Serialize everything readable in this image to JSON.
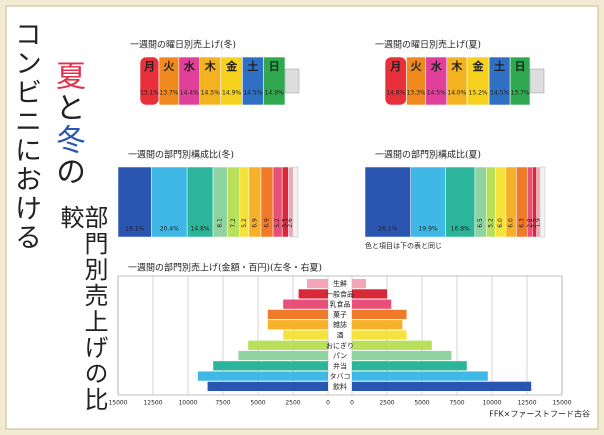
{
  "title": {
    "line1": "コンビニにおける",
    "summer": "夏",
    "and": "と",
    "winter": "冬",
    "no": "の",
    "line3": "部門別売上げの比較"
  },
  "chart_data": [
    {
      "type": "bottle",
      "title": "一週間の曜日別売上げ(冬)",
      "categories": [
        "月",
        "火",
        "水",
        "木",
        "金",
        "土",
        "日"
      ],
      "values": [
        13.1,
        13.7,
        14.4,
        14.5,
        14.9,
        14.5,
        14.9
      ],
      "value_labels": [
        "13.1%",
        "13.7%",
        "14.4%",
        "14.5%",
        "14.9%",
        "14.5%",
        "14.9%"
      ],
      "colors": [
        "#e8303a",
        "#f08a1e",
        "#e0409a",
        "#f3b21f",
        "#f6d21e",
        "#2f6fc4",
        "#2fa84f"
      ]
    },
    {
      "type": "bottle",
      "title": "一週間の曜日別売上げ(夏)",
      "categories": [
        "月",
        "火",
        "水",
        "木",
        "金",
        "土",
        "日"
      ],
      "values": [
        14.8,
        13.3,
        14.5,
        14.0,
        15.2,
        14.5,
        13.7
      ],
      "value_labels": [
        "14.8%",
        "13.3%",
        "14.5%",
        "14.0%",
        "15.2%",
        "14.5%",
        "13.7%"
      ],
      "colors": [
        "#e8303a",
        "#f08a1e",
        "#e0409a",
        "#f3b21f",
        "#f6d21e",
        "#2f6fc4",
        "#2fa84f"
      ]
    },
    {
      "type": "stacked",
      "title": "一週間の部門別構成比(冬)",
      "values": [
        19.1,
        20.4,
        14.8,
        8.1,
        7.2,
        5.2,
        6.9,
        6.9,
        5.2,
        3.5,
        2.6
      ],
      "value_labels": [
        "19.1%",
        "20.4%",
        "14.8%",
        "8.1",
        "7.2",
        "5.2",
        "6.9",
        "6.9",
        "5.2",
        "3.5",
        "2.6"
      ],
      "colors": [
        "#2a55b0",
        "#3fb8e6",
        "#2bb59a",
        "#8fd4a0",
        "#b8e05a",
        "#f5e23a",
        "#f7b02a",
        "#f07a2a",
        "#e8507a",
        "#d8283a",
        "#f4a6b8"
      ]
    },
    {
      "type": "stacked",
      "title": "一週間の部門別構成比(夏)",
      "values": [
        26.1,
        19.9,
        16.8,
        6.5,
        5.2,
        6.0,
        6.0,
        6.3,
        2.8,
        2.5,
        1.9
      ],
      "value_labels": [
        "26.1%",
        "19.9%",
        "16.8%",
        "6.5",
        "5.2",
        "6.0",
        "6.0",
        "6.3",
        "2.8",
        "2.5",
        "1.9"
      ],
      "colors": [
        "#2a55b0",
        "#3fb8e6",
        "#2bb59a",
        "#8fd4a0",
        "#b8e05a",
        "#f5e23a",
        "#f7b02a",
        "#f07a2a",
        "#e8507a",
        "#d8283a",
        "#f4a6b8"
      ]
    },
    {
      "type": "butterfly",
      "title": "一週間の部門別売上げ(金額・百円)(左冬・右夏)",
      "categories": [
        "生鮮",
        "一般食品",
        "乳食品",
        "菓子",
        "雑誌",
        "酒",
        "おにぎり",
        "パン",
        "弁当",
        "タバコ",
        "飲料"
      ],
      "colors": [
        "#f4a6b8",
        "#d8283a",
        "#e8507a",
        "#f07a2a",
        "#f7b02a",
        "#f5e23a",
        "#b8e05a",
        "#8fd4a0",
        "#2bb59a",
        "#3fb8e6",
        "#2a55b0"
      ],
      "series": [
        {
          "values": [
            1500,
            2100,
            3200,
            4300,
            4300,
            3200,
            5700,
            6400,
            8200,
            9300,
            8600
          ]
        },
        {
          "values": [
            1000,
            2500,
            2800,
            3900,
            3600,
            3900,
            5700,
            7100,
            8200,
            9700,
            12800
          ]
        }
      ],
      "xlim": [
        0,
        15000
      ],
      "xticks": [
        0,
        2500,
        5000,
        7500,
        10000,
        12500,
        15000
      ],
      "grid": true
    }
  ],
  "note": "色と項目は下の表と同じ",
  "footer": "FFK×ファーストフード古谷"
}
